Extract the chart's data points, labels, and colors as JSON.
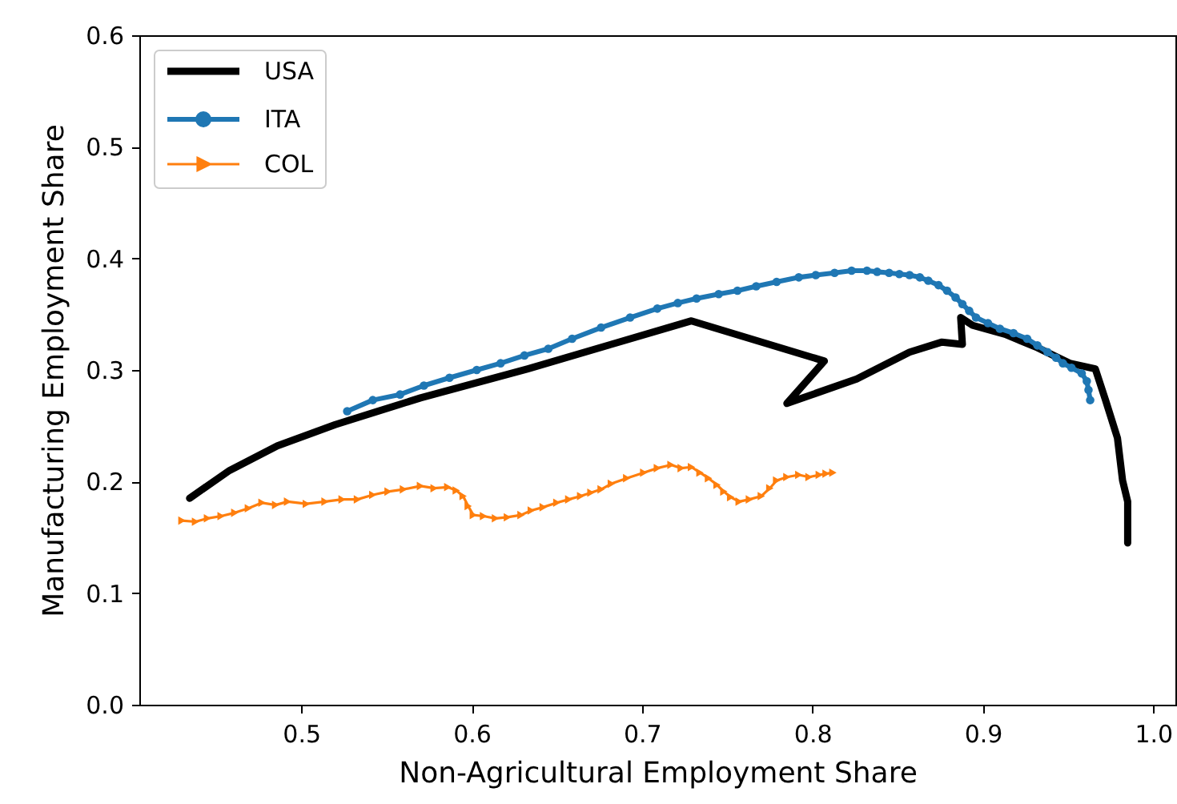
{
  "chart_data": {
    "type": "line",
    "xlabel": "Non-Agricultural Employment Share",
    "ylabel": "Manufacturing Employment Share",
    "xlim": [
      0.405,
      1.013
    ],
    "ylim": [
      0,
      0.6
    ],
    "xticks": [
      0.5,
      0.6,
      0.7,
      0.8,
      0.9,
      {
        "value": 1,
        "label": "1.0"
      }
    ],
    "yticks": [
      {
        "value": 0,
        "label": "0.0"
      },
      0.1,
      0.2,
      0.3,
      0.4,
      0.5,
      0.6
    ],
    "grid": false,
    "legend": "top left",
    "series": [
      {
        "name": "USA",
        "color": "#000000",
        "marker": "none",
        "x": [
          0.4345,
          0.458,
          0.486,
          0.52,
          0.57,
          0.633,
          0.682,
          0.729,
          0.807,
          0.785,
          0.826,
          0.857,
          0.876,
          0.888,
          0.887,
          0.894,
          0.913,
          0.932,
          0.951,
          0.966,
          0.972,
          0.979,
          0.982,
          0.985,
          0.985
        ],
        "values": [
          0.185,
          0.21,
          0.232,
          0.251,
          0.275,
          0.301,
          0.323,
          0.344,
          0.308,
          0.27,
          0.292,
          0.316,
          0.325,
          0.323,
          0.347,
          0.34,
          0.332,
          0.32,
          0.306,
          0.301,
          0.273,
          0.239,
          0.201,
          0.182,
          0.145
        ]
      },
      {
        "name": "ITA",
        "color": "#1f77b4",
        "marker": "circle",
        "x": [
          0.527,
          0.542,
          0.558,
          0.572,
          0.587,
          0.603,
          0.617,
          0.631,
          0.645,
          0.659,
          0.676,
          0.693,
          0.709,
          0.721,
          0.732,
          0.745,
          0.756,
          0.767,
          0.779,
          0.792,
          0.802,
          0.813,
          0.823,
          0.832,
          0.838,
          0.845,
          0.851,
          0.857,
          0.863,
          0.868,
          0.874,
          0.879,
          0.884,
          0.888,
          0.892,
          0.896,
          0.903,
          0.91,
          0.918,
          0.926,
          0.932,
          0.938,
          0.943,
          0.947,
          0.952,
          0.958,
          0.961,
          0.962,
          0.963
        ],
        "values": [
          0.263,
          0.273,
          0.278,
          0.286,
          0.293,
          0.3,
          0.306,
          0.313,
          0.319,
          0.328,
          0.338,
          0.347,
          0.355,
          0.36,
          0.364,
          0.368,
          0.371,
          0.375,
          0.379,
          0.383,
          0.385,
          0.387,
          0.389,
          0.389,
          0.388,
          0.387,
          0.386,
          0.385,
          0.383,
          0.38,
          0.376,
          0.371,
          0.365,
          0.359,
          0.353,
          0.347,
          0.342,
          0.337,
          0.333,
          0.328,
          0.322,
          0.316,
          0.311,
          0.306,
          0.302,
          0.297,
          0.29,
          0.282,
          0.273
        ]
      },
      {
        "name": "COL",
        "color": "#ff7f0e",
        "marker": "triangle",
        "x": [
          0.43,
          0.438,
          0.445,
          0.453,
          0.461,
          0.469,
          0.477,
          0.485,
          0.492,
          0.503,
          0.514,
          0.524,
          0.533,
          0.542,
          0.551,
          0.56,
          0.57,
          0.578,
          0.586,
          0.591,
          0.595,
          0.598,
          0.601,
          0.607,
          0.614,
          0.621,
          0.629,
          0.635,
          0.642,
          0.65,
          0.657,
          0.664,
          0.67,
          0.676,
          0.682,
          0.691,
          0.701,
          0.709,
          0.717,
          0.723,
          0.729,
          0.734,
          0.739,
          0.744,
          0.748,
          0.752,
          0.757,
          0.763,
          0.77,
          0.775,
          0.779,
          0.785,
          0.792,
          0.798,
          0.804,
          0.808,
          0.812
        ],
        "values": [
          0.165,
          0.164,
          0.167,
          0.169,
          0.172,
          0.176,
          0.181,
          0.179,
          0.182,
          0.18,
          0.182,
          0.184,
          0.184,
          0.188,
          0.191,
          0.193,
          0.196,
          0.194,
          0.195,
          0.192,
          0.187,
          0.178,
          0.17,
          0.169,
          0.167,
          0.168,
          0.17,
          0.174,
          0.177,
          0.181,
          0.184,
          0.187,
          0.19,
          0.193,
          0.198,
          0.203,
          0.208,
          0.212,
          0.215,
          0.212,
          0.213,
          0.208,
          0.203,
          0.197,
          0.191,
          0.186,
          0.182,
          0.184,
          0.187,
          0.194,
          0.201,
          0.204,
          0.206,
          0.204,
          0.206,
          0.207,
          0.208
        ]
      }
    ]
  }
}
